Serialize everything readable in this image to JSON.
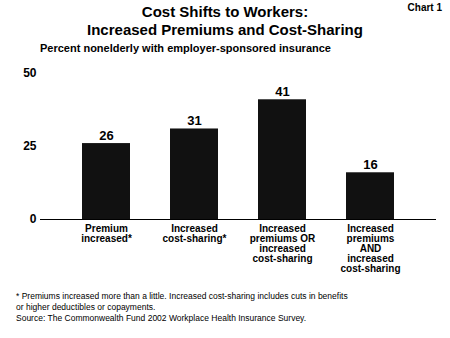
{
  "chart_data": {
    "type": "bar",
    "title": "Cost Shifts to Workers:\nIncreased Premiums and Cost-Sharing",
    "subtitle": "Percent nonelderly with employer-sponsored insurance",
    "annotations": [
      "Chart 1"
    ],
    "footnotes": [
      "* Premiums increased more than a little. Increased cost-sharing includes cuts in benefits",
      "or higher deductibles or copayments.",
      "Source: The Commonwealth Fund 2002 Workplace Health Insurance Survey."
    ],
    "categories": [
      "Premium\nincreased*",
      "Increased\ncost-sharing*",
      "Increased\npremiums OR\nincreased\ncost-sharing",
      "Increased\npremiums\nAND\nincreased\ncost-sharing"
    ],
    "values": [
      26,
      31,
      41,
      16
    ],
    "color": "#111111",
    "ylim": [
      0,
      50
    ],
    "yticks": [
      0,
      25,
      50
    ],
    "grid": false,
    "data_labels": true
  }
}
